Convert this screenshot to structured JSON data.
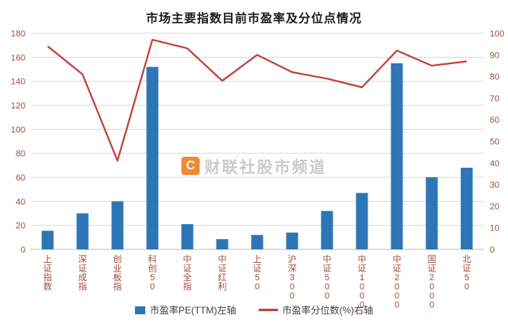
{
  "chart_data": {
    "type": "bar",
    "subtype": "bar+line combo",
    "title": "市场主要指数目前市盈率及分位点情况",
    "categories": [
      "上证指数",
      "深证成指",
      "创业板指",
      "科创50",
      "中证全指",
      "中证红利",
      "上证50",
      "沪深300",
      "中证500",
      "中证1000",
      "中证2000",
      "国证2000",
      "北证50"
    ],
    "series": [
      {
        "name": "市盈率PE(TTM)左轴",
        "type": "bar",
        "axis": "left",
        "color": "#2e75b6",
        "values": [
          15.5,
          30,
          40,
          152,
          21,
          8.5,
          12,
          14,
          32,
          47,
          155,
          60,
          68
        ]
      },
      {
        "name": "市盈率分位数(%)右轴",
        "type": "line",
        "axis": "right",
        "color": "#c0423c",
        "values": [
          94,
          81,
          41,
          97,
          93,
          78,
          90,
          82,
          79,
          75,
          92,
          85,
          87
        ]
      }
    ],
    "left_axis": {
      "min": 0,
      "max": 180,
      "step": 20
    },
    "right_axis": {
      "min": 0,
      "max": 100,
      "step": 10
    },
    "grid": true,
    "legend_position": "bottom",
    "tick_label_color": "#9e4b3e",
    "grid_color": "#d9d9d9",
    "baseline_color": "#bfbfbf"
  },
  "watermark": {
    "logo": "C",
    "text": "财联社股市频道"
  }
}
